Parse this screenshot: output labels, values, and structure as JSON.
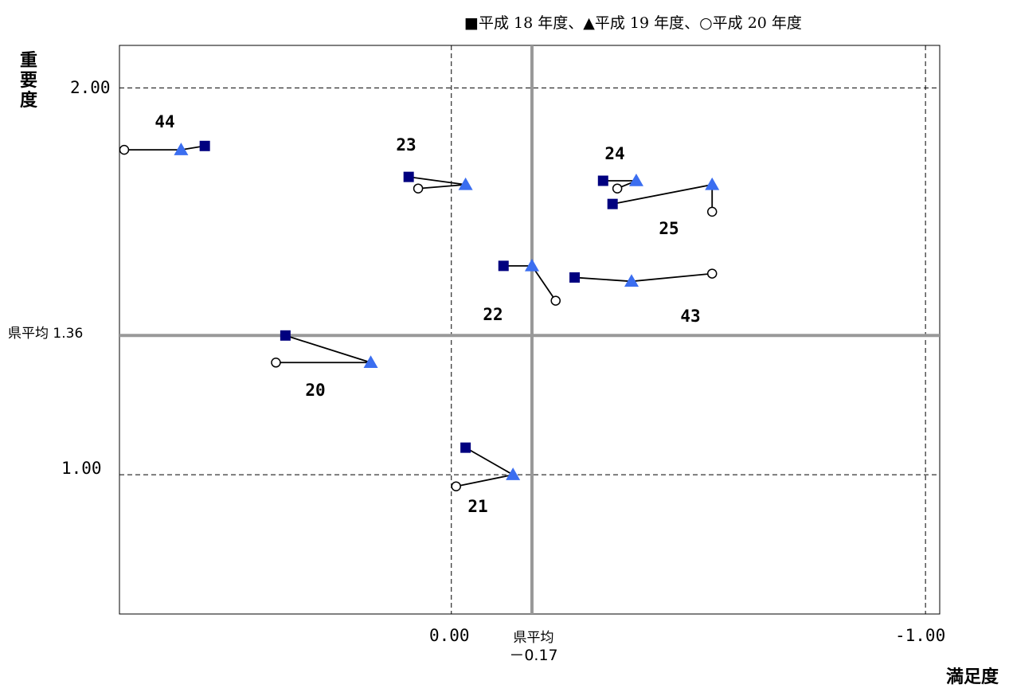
{
  "legend": "■平成 18 年度、▲平成 19 年度、○平成 20 年度",
  "colors": {
    "fy18": "#00007f",
    "fy19": "#3b6ef0",
    "fy20": "#ffffff",
    "avg_line": "#999999",
    "line": "#000000"
  },
  "axes": {
    "ylabel_chars": [
      "重",
      "要",
      "度"
    ],
    "xlabel": "満足度",
    "y_ticks": [
      {
        "value": 2.0,
        "label": "2.00"
      },
      {
        "value": 1.0,
        "label": "1.00"
      }
    ],
    "x_ticks": [
      {
        "value": 0.0,
        "label": "0.00"
      },
      {
        "value": -1.0,
        "label": "-1.00"
      }
    ],
    "avg_y": {
      "label": "県平均 1.36",
      "value": 1.36
    },
    "avg_x": {
      "label": "県平均",
      "value_label": "－0.17",
      "value": -0.17
    }
  },
  "chart_data": {
    "type": "scatter",
    "x_direction": "reversed",
    "xlim": [
      0.7,
      -1.03
    ],
    "ylim": [
      0.64,
      2.11
    ],
    "grid": true,
    "legend_placement": "top-right",
    "series": [
      {
        "name": "平成 18 年度",
        "marker": "square"
      },
      {
        "name": "平成 19 年度",
        "marker": "triangle"
      },
      {
        "name": "平成 20 年度",
        "marker": "circle"
      }
    ],
    "items": [
      {
        "id": "44",
        "fy18": [
          0.52,
          1.85
        ],
        "fy19": [
          0.57,
          1.84
        ],
        "fy20": [
          0.69,
          1.84
        ]
      },
      {
        "id": "23",
        "fy18": [
          0.09,
          1.77
        ],
        "fy19": [
          -0.03,
          1.75
        ],
        "fy20": [
          0.07,
          1.74
        ]
      },
      {
        "id": "24",
        "fy18": [
          -0.32,
          1.76
        ],
        "fy19": [
          -0.39,
          1.76
        ],
        "fy20": [
          -0.35,
          1.74
        ]
      },
      {
        "id": "25",
        "fy18": [
          -0.34,
          1.7
        ],
        "fy19": [
          -0.55,
          1.75
        ],
        "fy20": [
          -0.55,
          1.68
        ]
      },
      {
        "id": "22",
        "fy18": [
          -0.11,
          1.54
        ],
        "fy19": [
          -0.17,
          1.54
        ],
        "fy20": [
          -0.22,
          1.45
        ]
      },
      {
        "id": "43",
        "fy18": [
          -0.26,
          1.51
        ],
        "fy19": [
          -0.38,
          1.5
        ],
        "fy20": [
          -0.55,
          1.52
        ]
      },
      {
        "id": "20",
        "fy18": [
          0.35,
          1.36
        ],
        "fy19": [
          0.17,
          1.29
        ],
        "fy20": [
          0.37,
          1.29
        ]
      },
      {
        "id": "21",
        "fy18": [
          -0.03,
          1.07
        ],
        "fy19": [
          -0.13,
          1.0
        ],
        "fy20": [
          -0.01,
          0.97
        ]
      }
    ]
  }
}
